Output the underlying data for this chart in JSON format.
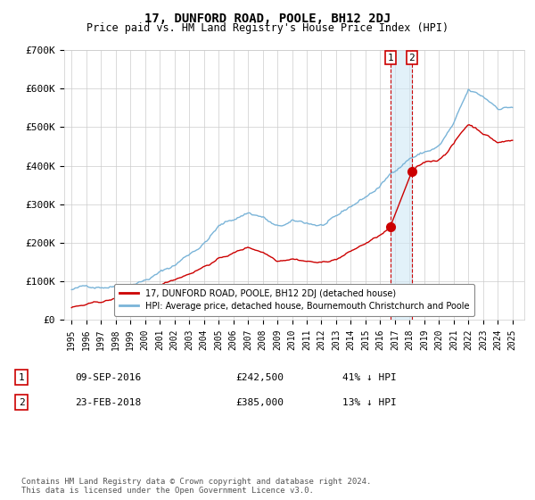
{
  "title": "17, DUNFORD ROAD, POOLE, BH12 2DJ",
  "subtitle": "Price paid vs. HM Land Registry's House Price Index (HPI)",
  "hpi_label": "HPI: Average price, detached house, Bournemouth Christchurch and Poole",
  "property_label": "17, DUNFORD ROAD, POOLE, BH12 2DJ (detached house)",
  "footer": "Contains HM Land Registry data © Crown copyright and database right 2024.\nThis data is licensed under the Open Government Licence v3.0.",
  "transaction1": {
    "label": "1",
    "date": "09-SEP-2016",
    "price": "£242,500",
    "pct": "41% ↓ HPI"
  },
  "transaction2": {
    "label": "2",
    "date": "23-FEB-2018",
    "price": "£385,000",
    "pct": "13% ↓ HPI"
  },
  "ylim": [
    0,
    700000
  ],
  "yticks": [
    0,
    100000,
    200000,
    300000,
    400000,
    500000,
    600000,
    700000
  ],
  "ytick_labels": [
    "£0",
    "£100K",
    "£200K",
    "£300K",
    "£400K",
    "£500K",
    "£600K",
    "£700K"
  ],
  "hpi_color": "#7ab4d8",
  "property_color": "#cc0000",
  "vline_color": "#cc0000",
  "grid_color": "#cccccc",
  "background_color": "#ffffff",
  "transaction1_x": 2016.69,
  "transaction2_x": 2018.15,
  "transaction1_y": 242500,
  "transaction2_y": 385000,
  "shade_color": "#d0e8f5",
  "xlim_left": 1994.5,
  "xlim_right": 2025.8
}
